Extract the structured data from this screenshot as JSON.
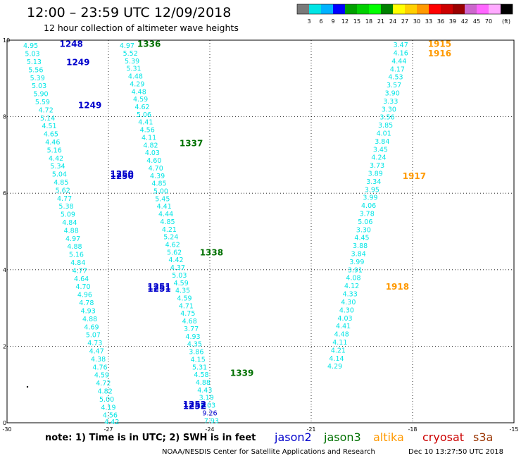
{
  "header": {
    "title": "12:00 – 23:59 UTC 12/09/2018",
    "subtitle": "12 hour collection of altimeter wave heights"
  },
  "colorbar": {
    "unit": "(ft)",
    "bins": [
      {
        "label": "",
        "color": "#7a7a7a"
      },
      {
        "label": "3",
        "color": "#00e5e5"
      },
      {
        "label": "6",
        "color": "#00b2ff"
      },
      {
        "label": "9",
        "color": "#0000ff"
      },
      {
        "label": "12",
        "color": "#00a000"
      },
      {
        "label": "15",
        "color": "#00d000"
      },
      {
        "label": "18",
        "color": "#00ff00"
      },
      {
        "label": "21",
        "color": "#008000"
      },
      {
        "label": "24",
        "color": "#ffff00"
      },
      {
        "label": "27",
        "color": "#ffd000"
      },
      {
        "label": "30",
        "color": "#ff9900"
      },
      {
        "label": "33",
        "color": "#ff0000"
      },
      {
        "label": "36",
        "color": "#cc0000"
      },
      {
        "label": "39",
        "color": "#990000"
      },
      {
        "label": "42",
        "color": "#cc66cc"
      },
      {
        "label": "45",
        "color": "#ff66ff"
      },
      {
        "label": "70",
        "color": "#ffaaff"
      },
      {
        "label": "",
        "color": "#000000"
      }
    ]
  },
  "footer": {
    "note": "note: 1) Time is in UTC; 2) SWH is in feet",
    "credit": "NOAA/NESDIS Center for Satellite Applications and Research",
    "timestamp": "Dec 10 13:27:50 UTC 2018",
    "legend": [
      {
        "name": "jason2",
        "color": "#0000cc"
      },
      {
        "name": "jason3",
        "color": "#007000"
      },
      {
        "name": "altika",
        "color": "#ff9900"
      },
      {
        "name": "cryosat",
        "color": "#cc0000"
      },
      {
        "name": "s3a",
        "color": "#993300"
      }
    ]
  },
  "chart_data": {
    "type": "scatter",
    "xlim": [
      -30,
      -15
    ],
    "ylim": [
      0,
      10
    ],
    "xticks": [
      "-30",
      "-27",
      "-24",
      "-21",
      "-18",
      "-15"
    ],
    "yticks": [
      "0",
      "2",
      "4",
      "6",
      "8",
      "10"
    ],
    "grid": true,
    "point_color": "#00e5e5",
    "points": [
      {
        "x": -29.3,
        "y": 9.85,
        "v": "4.95"
      },
      {
        "x": -29.25,
        "y": 9.64,
        "v": "5.03"
      },
      {
        "x": -29.2,
        "y": 9.43,
        "v": "5.13"
      },
      {
        "x": -29.15,
        "y": 9.22,
        "v": "5.56"
      },
      {
        "x": -29.1,
        "y": 9.01,
        "v": "5.39"
      },
      {
        "x": -29.05,
        "y": 8.8,
        "v": "5.03"
      },
      {
        "x": -29.0,
        "y": 8.59,
        "v": "5.90"
      },
      {
        "x": -28.95,
        "y": 8.38,
        "v": "5.59"
      },
      {
        "x": -28.85,
        "y": 8.17,
        "v": "4.72"
      },
      {
        "x": -28.8,
        "y": 7.96,
        "v": "5.14"
      },
      {
        "x": -28.75,
        "y": 7.75,
        "v": "4.51"
      },
      {
        "x": -28.7,
        "y": 7.54,
        "v": "4.65"
      },
      {
        "x": -28.65,
        "y": 7.33,
        "v": "4.46"
      },
      {
        "x": -28.6,
        "y": 7.12,
        "v": "5.16"
      },
      {
        "x": -28.55,
        "y": 6.91,
        "v": "4.42"
      },
      {
        "x": -28.5,
        "y": 6.7,
        "v": "5.34"
      },
      {
        "x": -28.45,
        "y": 6.49,
        "v": "5.04"
      },
      {
        "x": -28.4,
        "y": 6.28,
        "v": "4.85"
      },
      {
        "x": -28.35,
        "y": 6.07,
        "v": "5.62"
      },
      {
        "x": -28.3,
        "y": 5.86,
        "v": "4.77"
      },
      {
        "x": -28.25,
        "y": 5.65,
        "v": "5.38"
      },
      {
        "x": -28.2,
        "y": 5.44,
        "v": "5.09"
      },
      {
        "x": -28.15,
        "y": 5.23,
        "v": "4.84"
      },
      {
        "x": -28.1,
        "y": 5.02,
        "v": "4.88"
      },
      {
        "x": -28.05,
        "y": 4.81,
        "v": "4.97"
      },
      {
        "x": -28.0,
        "y": 4.6,
        "v": "4.88"
      },
      {
        "x": -27.95,
        "y": 4.39,
        "v": "5.16"
      },
      {
        "x": -27.9,
        "y": 4.18,
        "v": "4.84"
      },
      {
        "x": -27.85,
        "y": 3.97,
        "v": "4.77"
      },
      {
        "x": -27.8,
        "y": 3.76,
        "v": "4.64"
      },
      {
        "x": -27.75,
        "y": 3.55,
        "v": "4.70"
      },
      {
        "x": -27.7,
        "y": 3.34,
        "v": "4.96"
      },
      {
        "x": -27.65,
        "y": 3.13,
        "v": "4.78"
      },
      {
        "x": -27.6,
        "y": 2.92,
        "v": "4.93"
      },
      {
        "x": -27.55,
        "y": 2.71,
        "v": "4.88"
      },
      {
        "x": -27.5,
        "y": 2.5,
        "v": "4.69"
      },
      {
        "x": -27.45,
        "y": 2.29,
        "v": "5.07"
      },
      {
        "x": -27.4,
        "y": 2.08,
        "v": "4.73"
      },
      {
        "x": -27.35,
        "y": 1.87,
        "v": "4.47"
      },
      {
        "x": -27.3,
        "y": 1.66,
        "v": "4.38"
      },
      {
        "x": -27.25,
        "y": 1.45,
        "v": "4.76"
      },
      {
        "x": -27.2,
        "y": 1.24,
        "v": "4.59"
      },
      {
        "x": -27.15,
        "y": 1.03,
        "v": "4.72"
      },
      {
        "x": -27.1,
        "y": 0.82,
        "v": "4.82"
      },
      {
        "x": -27.05,
        "y": 0.61,
        "v": "5.00"
      },
      {
        "x": -27.0,
        "y": 0.4,
        "v": "4.19"
      },
      {
        "x": -26.95,
        "y": 0.19,
        "v": "4.56"
      },
      {
        "x": -26.9,
        "y": 0.02,
        "v": "4.42"
      },
      {
        "x": -26.45,
        "y": 9.85,
        "v": "4.97"
      },
      {
        "x": -26.35,
        "y": 9.65,
        "v": "5.52"
      },
      {
        "x": -26.3,
        "y": 9.45,
        "v": "5.39"
      },
      {
        "x": -26.25,
        "y": 9.25,
        "v": "5.31"
      },
      {
        "x": -26.2,
        "y": 9.05,
        "v": "4.48"
      },
      {
        "x": -26.15,
        "y": 8.85,
        "v": "4.29"
      },
      {
        "x": -26.1,
        "y": 8.65,
        "v": "4.48"
      },
      {
        "x": -26.05,
        "y": 8.45,
        "v": "4.59"
      },
      {
        "x": -26.0,
        "y": 8.25,
        "v": "4.62"
      },
      {
        "x": -25.95,
        "y": 8.05,
        "v": "5.06"
      },
      {
        "x": -25.9,
        "y": 7.85,
        "v": "4.41"
      },
      {
        "x": -25.85,
        "y": 7.65,
        "v": "4.56"
      },
      {
        "x": -25.8,
        "y": 7.45,
        "v": "4.11"
      },
      {
        "x": -25.75,
        "y": 7.25,
        "v": "4.82"
      },
      {
        "x": -25.7,
        "y": 7.05,
        "v": "4.03"
      },
      {
        "x": -25.65,
        "y": 6.85,
        "v": "4.60"
      },
      {
        "x": -25.6,
        "y": 6.65,
        "v": "4.70"
      },
      {
        "x": -25.55,
        "y": 6.45,
        "v": "4.39"
      },
      {
        "x": -25.5,
        "y": 6.25,
        "v": "4.85"
      },
      {
        "x": -25.45,
        "y": 6.05,
        "v": "5.00"
      },
      {
        "x": -25.4,
        "y": 5.85,
        "v": "5.45"
      },
      {
        "x": -25.35,
        "y": 5.65,
        "v": "4.41"
      },
      {
        "x": -25.3,
        "y": 5.45,
        "v": "4.44"
      },
      {
        "x": -25.25,
        "y": 5.25,
        "v": "4.85"
      },
      {
        "x": -25.2,
        "y": 5.05,
        "v": "4.21"
      },
      {
        "x": -25.15,
        "y": 4.85,
        "v": "5.24"
      },
      {
        "x": -25.1,
        "y": 4.65,
        "v": "4.62"
      },
      {
        "x": -25.05,
        "y": 4.45,
        "v": "5.62"
      },
      {
        "x": -25.0,
        "y": 4.25,
        "v": "4.42"
      },
      {
        "x": -24.95,
        "y": 4.05,
        "v": "4.37"
      },
      {
        "x": -24.9,
        "y": 3.85,
        "v": "5.03"
      },
      {
        "x": -24.85,
        "y": 3.65,
        "v": "4.59"
      },
      {
        "x": -24.8,
        "y": 3.45,
        "v": "4.35"
      },
      {
        "x": -24.75,
        "y": 3.25,
        "v": "4.59"
      },
      {
        "x": -24.7,
        "y": 3.05,
        "v": "4.71"
      },
      {
        "x": -24.65,
        "y": 2.85,
        "v": "4.75"
      },
      {
        "x": -24.6,
        "y": 2.65,
        "v": "4.68"
      },
      {
        "x": -24.55,
        "y": 2.45,
        "v": "3.77"
      },
      {
        "x": -24.5,
        "y": 2.25,
        "v": "4.93"
      },
      {
        "x": -24.45,
        "y": 2.05,
        "v": "4.35"
      },
      {
        "x": -24.4,
        "y": 1.85,
        "v": "3.86"
      },
      {
        "x": -24.35,
        "y": 1.65,
        "v": "4.15"
      },
      {
        "x": -24.3,
        "y": 1.45,
        "v": "5.31"
      },
      {
        "x": -24.25,
        "y": 1.25,
        "v": "4.58"
      },
      {
        "x": -24.2,
        "y": 1.05,
        "v": "4.88"
      },
      {
        "x": -24.15,
        "y": 0.85,
        "v": "4.43"
      },
      {
        "x": -24.1,
        "y": 0.65,
        "v": "3.19"
      },
      {
        "x": -24.05,
        "y": 0.45,
        "v": "4.03"
      },
      {
        "x": -24.0,
        "y": 0.25,
        "v": "9.26",
        "color": "#0000cc"
      },
      {
        "x": -23.95,
        "y": 0.05,
        "v": "7.93"
      },
      {
        "x": -18.35,
        "y": 9.87,
        "v": "3.47"
      },
      {
        "x": -18.35,
        "y": 9.66,
        "v": "4.16"
      },
      {
        "x": -18.4,
        "y": 9.45,
        "v": "4.44"
      },
      {
        "x": -18.45,
        "y": 9.24,
        "v": "4.17"
      },
      {
        "x": -18.5,
        "y": 9.03,
        "v": "4.53"
      },
      {
        "x": -18.55,
        "y": 8.82,
        "v": "3.57"
      },
      {
        "x": -18.6,
        "y": 8.61,
        "v": "3.90"
      },
      {
        "x": -18.65,
        "y": 8.4,
        "v": "3.33"
      },
      {
        "x": -18.7,
        "y": 8.19,
        "v": "3.30"
      },
      {
        "x": -18.75,
        "y": 7.98,
        "v": "3.56"
      },
      {
        "x": -18.8,
        "y": 7.77,
        "v": "3.85"
      },
      {
        "x": -18.85,
        "y": 7.56,
        "v": "4.01"
      },
      {
        "x": -18.9,
        "y": 7.35,
        "v": "3.84"
      },
      {
        "x": -18.95,
        "y": 7.14,
        "v": "3.45"
      },
      {
        "x": -19.0,
        "y": 6.93,
        "v": "4.24"
      },
      {
        "x": -19.05,
        "y": 6.72,
        "v": "3.73"
      },
      {
        "x": -19.1,
        "y": 6.51,
        "v": "3.89"
      },
      {
        "x": -19.15,
        "y": 6.3,
        "v": "3.34"
      },
      {
        "x": -19.2,
        "y": 6.09,
        "v": "3.95"
      },
      {
        "x": -19.25,
        "y": 5.88,
        "v": "3.99"
      },
      {
        "x": -19.3,
        "y": 5.67,
        "v": "4.06"
      },
      {
        "x": -19.35,
        "y": 5.46,
        "v": "3.78"
      },
      {
        "x": -19.4,
        "y": 5.25,
        "v": "5.06"
      },
      {
        "x": -19.45,
        "y": 5.04,
        "v": "3.30"
      },
      {
        "x": -19.5,
        "y": 4.83,
        "v": "4.45"
      },
      {
        "x": -19.55,
        "y": 4.62,
        "v": "3.88"
      },
      {
        "x": -19.6,
        "y": 4.41,
        "v": "3.84"
      },
      {
        "x": -19.65,
        "y": 4.2,
        "v": "3.99"
      },
      {
        "x": -19.7,
        "y": 3.99,
        "v": "3.91"
      },
      {
        "x": -19.75,
        "y": 3.78,
        "v": "4.08"
      },
      {
        "x": -19.8,
        "y": 3.57,
        "v": "4.12"
      },
      {
        "x": -19.85,
        "y": 3.36,
        "v": "4.33"
      },
      {
        "x": -19.9,
        "y": 3.15,
        "v": "4.30"
      },
      {
        "x": -19.95,
        "y": 2.94,
        "v": "4.30"
      },
      {
        "x": -20.0,
        "y": 2.73,
        "v": "4.03"
      },
      {
        "x": -20.05,
        "y": 2.52,
        "v": "4.41"
      },
      {
        "x": -20.1,
        "y": 2.31,
        "v": "4.48"
      },
      {
        "x": -20.15,
        "y": 2.1,
        "v": "4.11"
      },
      {
        "x": -20.2,
        "y": 1.89,
        "v": "4.21"
      },
      {
        "x": -20.25,
        "y": 1.68,
        "v": "4.14"
      },
      {
        "x": -20.3,
        "y": 1.47,
        "v": "4.29"
      }
    ],
    "pass_labels": [
      {
        "x": -28.1,
        "y": 9.9,
        "text": "1248",
        "color": "#0000cc"
      },
      {
        "x": -27.9,
        "y": 9.42,
        "text": "1249",
        "color": "#0000cc"
      },
      {
        "x": -27.55,
        "y": 8.3,
        "text": "1249",
        "color": "#0000cc"
      },
      {
        "x": -26.6,
        "y": 6.5,
        "text": "1250",
        "color": "#0000cc"
      },
      {
        "x": -26.6,
        "y": 6.45,
        "text": "1250",
        "color": "#0000cc"
      },
      {
        "x": -25.5,
        "y": 3.55,
        "text": "1251",
        "color": "#0000cc"
      },
      {
        "x": -25.5,
        "y": 3.5,
        "text": "1251",
        "color": "#0000cc"
      },
      {
        "x": -24.45,
        "y": 0.48,
        "text": "1252",
        "color": "#0000cc"
      },
      {
        "x": -24.45,
        "y": 0.43,
        "text": "1252",
        "color": "#0000cc"
      },
      {
        "x": -25.8,
        "y": 9.9,
        "text": "1336",
        "color": "#007000"
      },
      {
        "x": -24.55,
        "y": 7.3,
        "text": "1337",
        "color": "#007000"
      },
      {
        "x": -23.95,
        "y": 4.45,
        "text": "1338",
        "color": "#007000"
      },
      {
        "x": -23.05,
        "y": 1.3,
        "text": "1339",
        "color": "#007000"
      },
      {
        "x": -17.2,
        "y": 9.9,
        "text": "1915",
        "color": "#ff9900"
      },
      {
        "x": -17.2,
        "y": 9.65,
        "text": "1916",
        "color": "#ff9900"
      },
      {
        "x": -17.95,
        "y": 6.45,
        "text": "1917",
        "color": "#ff9900"
      },
      {
        "x": -18.45,
        "y": 3.55,
        "text": "1918",
        "color": "#ff9900"
      }
    ]
  }
}
